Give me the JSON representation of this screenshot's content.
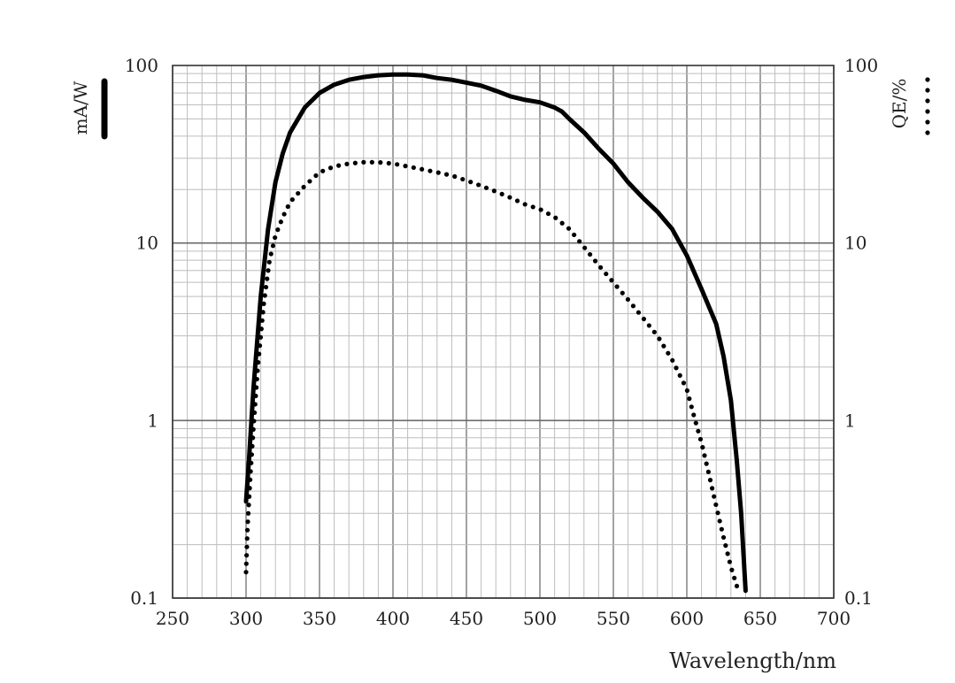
{
  "chart_data": {
    "type": "line",
    "xlabel": "Wavelength/nm",
    "ylabel_left": "mA/W",
    "ylabel_right": "QE/%",
    "yscale": "log",
    "xlim": [
      250,
      700
    ],
    "ylim": [
      0.1,
      100
    ],
    "x_ticks": [
      250,
      300,
      350,
      400,
      450,
      500,
      550,
      600,
      650,
      700
    ],
    "y_ticks": [
      {
        "value": 0.1,
        "label": "0.1"
      },
      {
        "value": 1,
        "label": "1"
      },
      {
        "value": 10,
        "label": "10"
      },
      {
        "value": 100,
        "label": "100"
      }
    ],
    "grid": true,
    "series": [
      {
        "style": "solid",
        "axis": "left",
        "color": "#000000",
        "points": [
          [
            300,
            0.35
          ],
          [
            302,
            0.6
          ],
          [
            305,
            1.5
          ],
          [
            310,
            5
          ],
          [
            315,
            12
          ],
          [
            320,
            22
          ],
          [
            325,
            32
          ],
          [
            330,
            42
          ],
          [
            340,
            58
          ],
          [
            350,
            70
          ],
          [
            360,
            78
          ],
          [
            370,
            83
          ],
          [
            380,
            86
          ],
          [
            390,
            88
          ],
          [
            400,
            89
          ],
          [
            410,
            89
          ],
          [
            420,
            88
          ],
          [
            430,
            85
          ],
          [
            440,
            83
          ],
          [
            450,
            80
          ],
          [
            460,
            77
          ],
          [
            470,
            72
          ],
          [
            480,
            67
          ],
          [
            490,
            64
          ],
          [
            500,
            62
          ],
          [
            510,
            58
          ],
          [
            515,
            55
          ],
          [
            520,
            50
          ],
          [
            530,
            42
          ],
          [
            540,
            34
          ],
          [
            550,
            28
          ],
          [
            560,
            22
          ],
          [
            570,
            18
          ],
          [
            580,
            15
          ],
          [
            590,
            12
          ],
          [
            600,
            8.5
          ],
          [
            610,
            5.5
          ],
          [
            620,
            3.5
          ],
          [
            625,
            2.3
          ],
          [
            630,
            1.3
          ],
          [
            634,
            0.6
          ],
          [
            637,
            0.3
          ],
          [
            640,
            0.11
          ]
        ]
      },
      {
        "style": "dotted",
        "axis": "right",
        "color": "#000000",
        "points": [
          [
            300,
            0.14
          ],
          [
            301,
            0.25
          ],
          [
            303,
            0.5
          ],
          [
            305,
            0.9
          ],
          [
            308,
            2
          ],
          [
            312,
            4.5
          ],
          [
            316,
            8
          ],
          [
            320,
            11
          ],
          [
            325,
            14
          ],
          [
            330,
            17
          ],
          [
            340,
            21
          ],
          [
            350,
            25
          ],
          [
            360,
            27
          ],
          [
            370,
            28
          ],
          [
            380,
            28.5
          ],
          [
            390,
            28.5
          ],
          [
            400,
            28
          ],
          [
            410,
            27
          ],
          [
            420,
            26
          ],
          [
            430,
            25
          ],
          [
            440,
            24
          ],
          [
            450,
            22.5
          ],
          [
            460,
            21
          ],
          [
            470,
            19.5
          ],
          [
            480,
            18
          ],
          [
            490,
            16.5
          ],
          [
            500,
            15.5
          ],
          [
            510,
            14
          ],
          [
            520,
            12
          ],
          [
            530,
            9.5
          ],
          [
            540,
            7.5
          ],
          [
            550,
            6
          ],
          [
            560,
            4.8
          ],
          [
            570,
            3.8
          ],
          [
            580,
            3
          ],
          [
            590,
            2.2
          ],
          [
            600,
            1.5
          ],
          [
            605,
            1.05
          ],
          [
            610,
            0.75
          ],
          [
            615,
            0.5
          ],
          [
            620,
            0.33
          ],
          [
            625,
            0.22
          ],
          [
            630,
            0.15
          ],
          [
            635,
            0.11
          ]
        ]
      }
    ]
  }
}
